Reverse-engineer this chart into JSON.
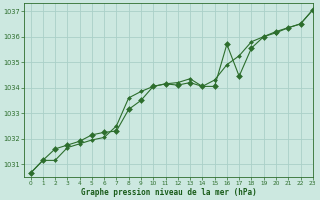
{
  "title": "Graphe pression niveau de la mer (hPa)",
  "background_color": "#cce8e0",
  "grid_color": "#aad0c8",
  "line_color": "#2d6e2d",
  "marker_color": "#2d6e2d",
  "xlim": [
    -0.5,
    23
  ],
  "ylim": [
    1030.5,
    1037.3
  ],
  "yticks": [
    1031,
    1032,
    1033,
    1034,
    1035,
    1036,
    1037
  ],
  "xticks": [
    0,
    1,
    2,
    3,
    4,
    5,
    6,
    7,
    8,
    9,
    10,
    11,
    12,
    13,
    14,
    15,
    16,
    17,
    18,
    19,
    20,
    21,
    22,
    23
  ],
  "series1_x": [
    0,
    1,
    2,
    3,
    4,
    5,
    6,
    7,
    8,
    9,
    10,
    11,
    12,
    13,
    14,
    15,
    16,
    17,
    18,
    19,
    20,
    21,
    22,
    23
  ],
  "series1_y": [
    1030.65,
    1031.15,
    1031.15,
    1031.65,
    1031.8,
    1031.95,
    1032.05,
    1032.5,
    1033.6,
    1033.85,
    1034.05,
    1034.15,
    1034.2,
    1034.35,
    1034.05,
    1034.3,
    1034.9,
    1035.25,
    1035.8,
    1036.0,
    1036.15,
    1036.35,
    1036.5,
    1037.05
  ],
  "series2_x": [
    0,
    1,
    2,
    3,
    4,
    5,
    6,
    7,
    8,
    9,
    10,
    11,
    12,
    13,
    14,
    15,
    16,
    17,
    18,
    19,
    20,
    21,
    22,
    23
  ],
  "series2_y": [
    1030.65,
    1031.15,
    1031.6,
    1031.75,
    1031.9,
    1032.15,
    1032.25,
    1032.3,
    1033.15,
    1033.5,
    1034.05,
    1034.15,
    1034.1,
    1034.2,
    1034.05,
    1034.05,
    1035.7,
    1034.45,
    1035.55,
    1036.0,
    1036.2,
    1036.35,
    1036.5,
    1037.05
  ],
  "tick_color": "#2d6e2d",
  "axis_color": "#2d6e2d",
  "xlabel_color": "#1a5c1a"
}
